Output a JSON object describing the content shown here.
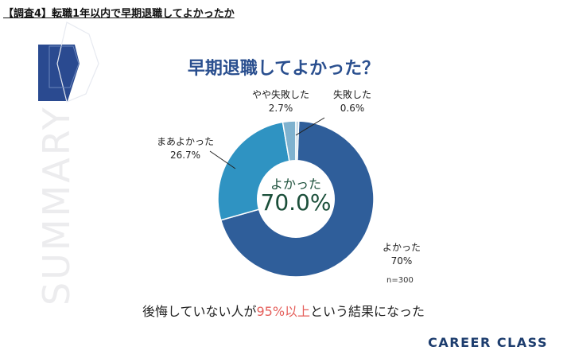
{
  "header": {
    "title": "【調査4】転職1年以内で早期退職してよかったか"
  },
  "decor": {
    "vertical_text": "SUMMARY"
  },
  "chart_data": {
    "type": "pie",
    "title": "早期退職してよかった？",
    "categories": [
      "よかった",
      "まあよかった",
      "やや失敗した",
      "失敗した"
    ],
    "values": [
      70.0,
      26.7,
      2.7,
      0.6
    ],
    "slice_labels": [
      {
        "name": "よかった",
        "value": "70%"
      },
      {
        "name": "まあよかった",
        "value": "26.7%"
      },
      {
        "name": "やや失敗した",
        "value": "2.7%"
      },
      {
        "name": "失敗した",
        "value": "0.6%"
      }
    ],
    "colors": [
      "#2f5e9a",
      "#2f93c2",
      "#7fb2cf",
      "#bcd4e3"
    ],
    "center": {
      "label": "よかった",
      "value": "70.0%"
    },
    "sample_size": "n=300"
  },
  "footnote": {
    "before": "後悔していない人が",
    "highlight": "95%以上",
    "after": "という結果になった"
  },
  "brand": {
    "name": "CAREER CLASS"
  },
  "theme": {
    "accent": "#2a4f8f",
    "highlight": "#e5605c"
  }
}
